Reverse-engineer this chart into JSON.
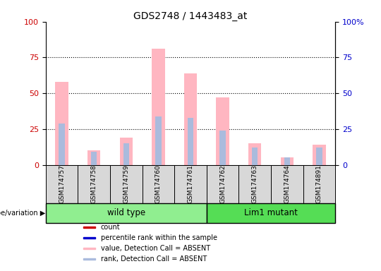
{
  "title": "GDS2748 / 1443483_at",
  "samples": [
    "GSM174757",
    "GSM174758",
    "GSM174759",
    "GSM174760",
    "GSM174761",
    "GSM174762",
    "GSM174763",
    "GSM174764",
    "GSM174891"
  ],
  "groups": [
    {
      "label": "wild type",
      "count": 5,
      "color": "#90EE90"
    },
    {
      "label": "Lim1 mutant",
      "count": 4,
      "color": "#55DD55"
    }
  ],
  "value_absent": [
    58,
    10,
    19,
    81,
    64,
    47,
    15,
    5,
    14
  ],
  "rank_absent": [
    29,
    9,
    15,
    34,
    33,
    24,
    12,
    5,
    12
  ],
  "ylim": [
    0,
    100
  ],
  "yticks": [
    0,
    25,
    50,
    75,
    100
  ],
  "color_value_absent": "#FFB6C1",
  "color_rank_absent": "#AABBDD",
  "color_count": "#CC0000",
  "color_rank": "#0000CC",
  "right_axis_color": "#0000CC",
  "left_axis_color": "#CC0000",
  "legend_items": [
    {
      "label": "count",
      "color": "#CC0000"
    },
    {
      "label": "percentile rank within the sample",
      "color": "#0000CC"
    },
    {
      "label": "value, Detection Call = ABSENT",
      "color": "#FFB6C1"
    },
    {
      "label": "rank, Detection Call = ABSENT",
      "color": "#AABBDD"
    }
  ],
  "fig_width": 5.4,
  "fig_height": 3.84,
  "dpi": 100
}
